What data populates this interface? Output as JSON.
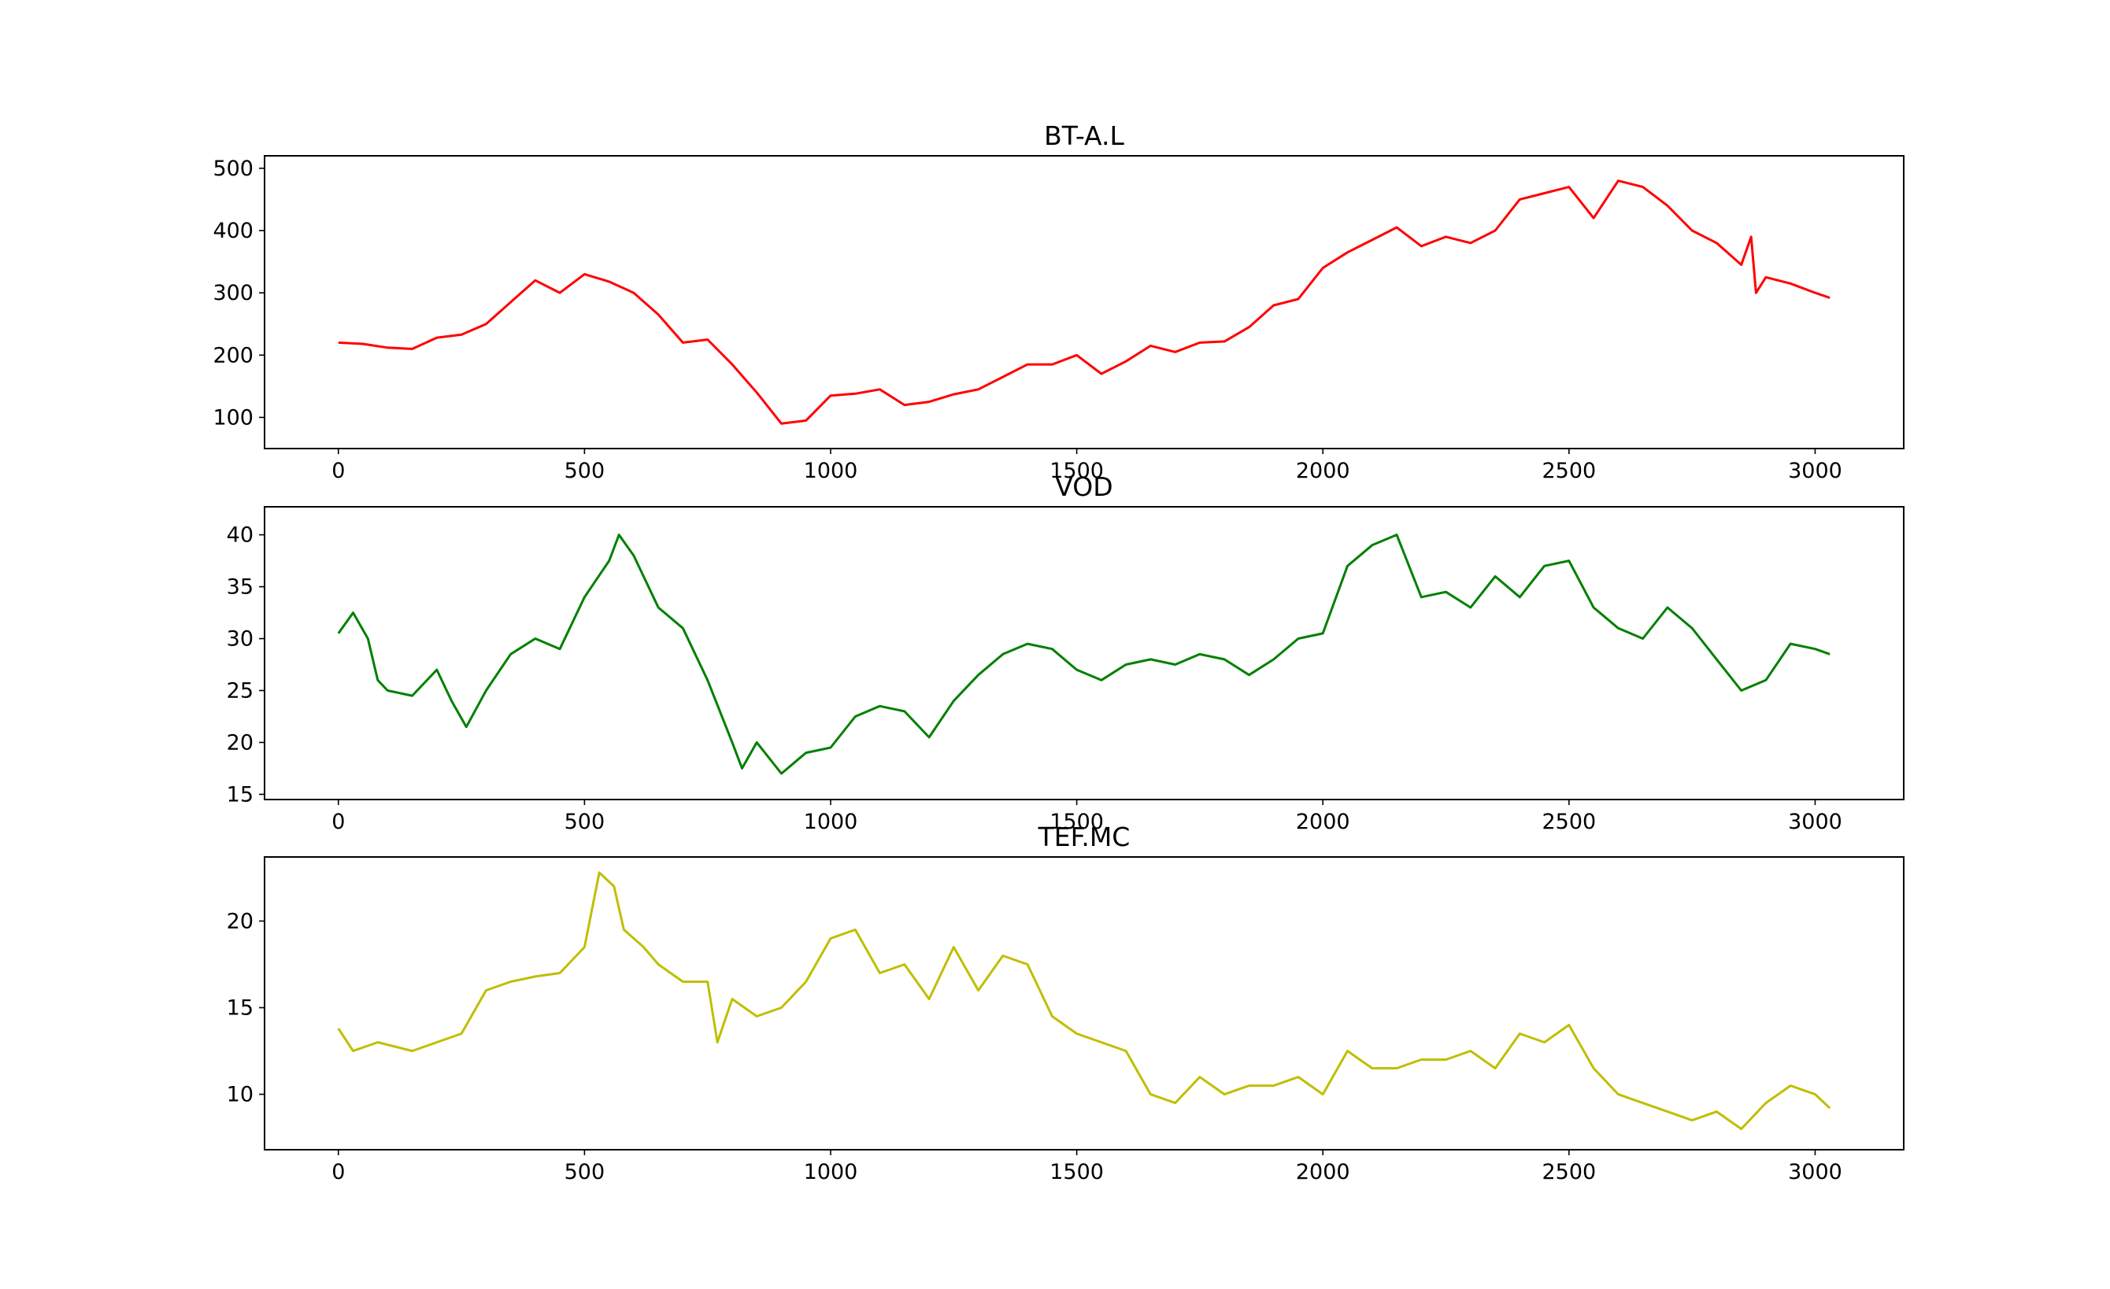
{
  "chart_data": [
    {
      "type": "line",
      "title": "BT-A.L",
      "xlabel": "",
      "ylabel": "",
      "color": "#ff0000",
      "xlim": [
        -150,
        3180
      ],
      "ylim": [
        50,
        520
      ],
      "xticks": [
        0,
        500,
        1000,
        1500,
        2000,
        2500,
        3000
      ],
      "yticks": [
        100,
        200,
        300,
        400,
        500
      ],
      "grid": false,
      "series": [
        {
          "x": [
            0,
            50,
            100,
            150,
            200,
            250,
            300,
            350,
            400,
            450,
            500,
            550,
            600,
            650,
            700,
            750,
            800,
            850,
            900,
            950,
            1000,
            1050,
            1100,
            1150,
            1200,
            1250,
            1300,
            1350,
            1400,
            1450,
            1500,
            1550,
            1600,
            1650,
            1700,
            1750,
            1800,
            1850,
            1900,
            1950,
            2000,
            2050,
            2100,
            2150,
            2200,
            2250,
            2300,
            2350,
            2400,
            2450,
            2500,
            2550,
            2600,
            2650,
            2700,
            2750,
            2800,
            2850,
            2870,
            2880,
            2900,
            2950,
            3000,
            3030
          ],
          "y": [
            220,
            218,
            212,
            210,
            228,
            233,
            250,
            285,
            320,
            300,
            330,
            318,
            300,
            265,
            220,
            225,
            185,
            140,
            90,
            95,
            135,
            138,
            145,
            120,
            125,
            137,
            145,
            165,
            185,
            185,
            200,
            170,
            190,
            215,
            205,
            220,
            222,
            245,
            280,
            290,
            340,
            365,
            385,
            405,
            375,
            390,
            380,
            400,
            450,
            460,
            470,
            420,
            480,
            470,
            440,
            400,
            380,
            345,
            390,
            300,
            325,
            315,
            300,
            292
          ]
        }
      ]
    },
    {
      "type": "line",
      "title": "VOD",
      "xlabel": "",
      "ylabel": "",
      "color": "#008000",
      "xlim": [
        -150,
        3180
      ],
      "ylim": [
        14.5,
        42.7
      ],
      "xticks": [
        0,
        500,
        1000,
        1500,
        2000,
        2500,
        3000
      ],
      "yticks": [
        15,
        20,
        25,
        30,
        35,
        40
      ],
      "grid": false,
      "series": [
        {
          "x": [
            0,
            30,
            60,
            80,
            100,
            150,
            200,
            230,
            260,
            300,
            350,
            400,
            450,
            500,
            550,
            570,
            600,
            650,
            700,
            750,
            800,
            820,
            850,
            900,
            950,
            1000,
            1050,
            1100,
            1150,
            1200,
            1250,
            1300,
            1350,
            1400,
            1450,
            1500,
            1550,
            1600,
            1650,
            1700,
            1750,
            1800,
            1850,
            1900,
            1950,
            2000,
            2050,
            2100,
            2150,
            2200,
            2250,
            2300,
            2350,
            2400,
            2450,
            2500,
            2550,
            2600,
            2650,
            2700,
            2750,
            2800,
            2850,
            2900,
            2950,
            3000,
            3030
          ],
          "y": [
            30.5,
            32.5,
            30.0,
            26.0,
            25.0,
            24.5,
            27.0,
            24.0,
            21.5,
            25.0,
            28.5,
            30.0,
            29.0,
            34.0,
            37.5,
            40.0,
            38.0,
            33.0,
            31.0,
            26.0,
            20.0,
            17.5,
            20.0,
            17.0,
            19.0,
            19.5,
            22.5,
            23.5,
            23.0,
            20.5,
            24.0,
            26.5,
            28.5,
            29.5,
            29.0,
            27.0,
            26.0,
            27.5,
            28.0,
            27.5,
            28.5,
            28.0,
            26.5,
            28.0,
            30.0,
            30.5,
            37.0,
            39.0,
            40.0,
            34.0,
            34.5,
            33.0,
            36.0,
            34.0,
            37.0,
            37.5,
            33.0,
            31.0,
            30.0,
            33.0,
            31.0,
            28.0,
            25.0,
            26.0,
            29.5,
            29.0,
            28.5
          ]
        }
      ]
    },
    {
      "type": "line",
      "title": "TEF.MC",
      "xlabel": "",
      "ylabel": "",
      "color": "#bfbf00",
      "xlim": [
        -150,
        3180
      ],
      "ylim": [
        6.8,
        23.7
      ],
      "xticks": [
        0,
        500,
        1000,
        1500,
        2000,
        2500,
        3000
      ],
      "yticks": [
        10,
        15,
        20
      ],
      "grid": false,
      "series": [
        {
          "x": [
            0,
            30,
            80,
            150,
            200,
            250,
            300,
            350,
            400,
            450,
            500,
            530,
            560,
            580,
            620,
            650,
            700,
            750,
            770,
            800,
            850,
            900,
            950,
            1000,
            1050,
            1100,
            1150,
            1200,
            1250,
            1300,
            1350,
            1400,
            1450,
            1500,
            1550,
            1600,
            1650,
            1700,
            1750,
            1800,
            1850,
            1900,
            1950,
            2000,
            2050,
            2100,
            2150,
            2200,
            2250,
            2300,
            2350,
            2400,
            2450,
            2500,
            2550,
            2600,
            2650,
            2700,
            2750,
            2800,
            2850,
            2900,
            2950,
            3000,
            3030
          ],
          "y": [
            13.8,
            12.5,
            13.0,
            12.5,
            13.0,
            13.5,
            16.0,
            16.5,
            16.8,
            17.0,
            18.5,
            22.8,
            22.0,
            19.5,
            18.5,
            17.5,
            16.5,
            16.5,
            13.0,
            15.5,
            14.5,
            15.0,
            16.5,
            19.0,
            19.5,
            17.0,
            17.5,
            15.5,
            18.5,
            16.0,
            18.0,
            17.5,
            14.5,
            13.5,
            13.0,
            12.5,
            10.0,
            9.5,
            11.0,
            10.0,
            10.5,
            10.5,
            11.0,
            10.0,
            12.5,
            11.5,
            11.5,
            12.0,
            12.0,
            12.5,
            11.5,
            13.5,
            13.0,
            14.0,
            11.5,
            10.0,
            9.5,
            9.0,
            8.5,
            9.0,
            8.0,
            9.5,
            10.5,
            10.0,
            9.2
          ]
        }
      ]
    }
  ]
}
